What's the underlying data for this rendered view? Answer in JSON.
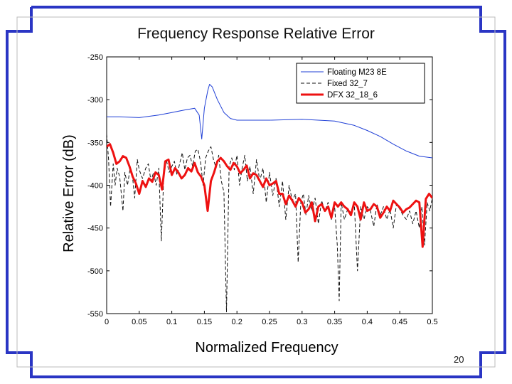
{
  "slide": {
    "page_number": "20",
    "frame_color": "#2a35c4"
  },
  "chart_data": {
    "type": "line",
    "title": "Frequency Response Relative Error",
    "xlabel": "Normalized Frequency",
    "ylabel": "Relative Error (dB)",
    "xlim": [
      0,
      0.5
    ],
    "ylim": [
      -550,
      -250
    ],
    "xticks": [
      0,
      0.05,
      0.1,
      0.15,
      0.2,
      0.25,
      0.3,
      0.35,
      0.4,
      0.45,
      0.5
    ],
    "xtick_labels": [
      "0",
      "0.05",
      "0.1",
      "0.15",
      "0.2",
      "0.25",
      "0.3",
      "0.35",
      "0.4",
      "0.45",
      "0.5"
    ],
    "yticks": [
      -250,
      -300,
      -350,
      -400,
      -450,
      -500,
      -550
    ],
    "ytick_labels": [
      "-250",
      "-300",
      "-350",
      "-400",
      "-450",
      "-500",
      "-550"
    ],
    "grid": false,
    "legend_position": "top-right",
    "series": [
      {
        "name": "Floating M23 8E",
        "color": "#1f3fd6",
        "style": "solid",
        "x": [
          0.0,
          0.02,
          0.05,
          0.08,
          0.1,
          0.12,
          0.135,
          0.142,
          0.146,
          0.15,
          0.155,
          0.158,
          0.162,
          0.17,
          0.18,
          0.19,
          0.2,
          0.25,
          0.3,
          0.35,
          0.38,
          0.4,
          0.42,
          0.44,
          0.46,
          0.48,
          0.5
        ],
        "y": [
          -320,
          -320,
          -321,
          -318,
          -315,
          -312,
          -310,
          -318,
          -346,
          -310,
          -290,
          -282,
          -285,
          -300,
          -315,
          -322,
          -324,
          -324,
          -323,
          -325,
          -330,
          -336,
          -343,
          -352,
          -360,
          -366,
          -368
        ]
      },
      {
        "name": "Fixed 32_7",
        "color": "#111111",
        "style": "dashed",
        "x": [
          0.0,
          0.003,
          0.006,
          0.01,
          0.013,
          0.016,
          0.02,
          0.025,
          0.028,
          0.032,
          0.036,
          0.04,
          0.043,
          0.047,
          0.05,
          0.055,
          0.06,
          0.064,
          0.068,
          0.072,
          0.076,
          0.08,
          0.084,
          0.088,
          0.092,
          0.096,
          0.1,
          0.104,
          0.108,
          0.112,
          0.116,
          0.12,
          0.124,
          0.128,
          0.132,
          0.136,
          0.14,
          0.144,
          0.148,
          0.152,
          0.156,
          0.16,
          0.164,
          0.168,
          0.172,
          0.176,
          0.18,
          0.184,
          0.188,
          0.192,
          0.196,
          0.2,
          0.204,
          0.208,
          0.212,
          0.216,
          0.22,
          0.225,
          0.23,
          0.235,
          0.24,
          0.245,
          0.25,
          0.255,
          0.26,
          0.265,
          0.27,
          0.275,
          0.28,
          0.285,
          0.29,
          0.294,
          0.298,
          0.302,
          0.306,
          0.31,
          0.315,
          0.32,
          0.325,
          0.33,
          0.335,
          0.34,
          0.345,
          0.35,
          0.354,
          0.357,
          0.36,
          0.365,
          0.37,
          0.375,
          0.38,
          0.385,
          0.39,
          0.395,
          0.4,
          0.405,
          0.41,
          0.415,
          0.42,
          0.425,
          0.43,
          0.435,
          0.44,
          0.445,
          0.45,
          0.455,
          0.46,
          0.465,
          0.47,
          0.475,
          0.48,
          0.484,
          0.488,
          0.492,
          0.496,
          0.5
        ],
        "y": [
          -340,
          -370,
          -425,
          -375,
          -400,
          -380,
          -390,
          -430,
          -385,
          -400,
          -380,
          -392,
          -415,
          -370,
          -382,
          -392,
          -380,
          -375,
          -395,
          -385,
          -400,
          -380,
          -465,
          -382,
          -372,
          -385,
          -378,
          -372,
          -388,
          -375,
          -362,
          -382,
          -368,
          -365,
          -378,
          -360,
          -358,
          -372,
          -400,
          -368,
          -360,
          -355,
          -370,
          -380,
          -365,
          -395,
          -408,
          -548,
          -378,
          -368,
          -382,
          -365,
          -400,
          -380,
          -365,
          -395,
          -378,
          -410,
          -370,
          -395,
          -380,
          -420,
          -385,
          -412,
          -392,
          -425,
          -395,
          -440,
          -400,
          -418,
          -410,
          -490,
          -420,
          -410,
          -435,
          -412,
          -430,
          -415,
          -445,
          -418,
          -430,
          -420,
          -440,
          -425,
          -470,
          -535,
          -420,
          -440,
          -428,
          -432,
          -420,
          -500,
          -425,
          -440,
          -425,
          -430,
          -448,
          -422,
          -435,
          -425,
          -440,
          -428,
          -450,
          -422,
          -428,
          -435,
          -440,
          -430,
          -445,
          -430,
          -450,
          -425,
          -470,
          -420,
          -430,
          -415
        ]
      },
      {
        "name": "DFX 32_18_6",
        "color": "#ee1111",
        "style": "solid-thick",
        "x": [
          0.0,
          0.005,
          0.01,
          0.015,
          0.02,
          0.025,
          0.03,
          0.035,
          0.04,
          0.045,
          0.05,
          0.055,
          0.06,
          0.065,
          0.07,
          0.075,
          0.08,
          0.085,
          0.09,
          0.095,
          0.1,
          0.105,
          0.11,
          0.115,
          0.12,
          0.125,
          0.13,
          0.135,
          0.14,
          0.145,
          0.15,
          0.155,
          0.16,
          0.165,
          0.17,
          0.175,
          0.18,
          0.185,
          0.19,
          0.195,
          0.2,
          0.205,
          0.21,
          0.215,
          0.22,
          0.225,
          0.23,
          0.235,
          0.24,
          0.245,
          0.25,
          0.255,
          0.26,
          0.265,
          0.27,
          0.275,
          0.28,
          0.285,
          0.29,
          0.295,
          0.3,
          0.305,
          0.31,
          0.315,
          0.32,
          0.325,
          0.33,
          0.335,
          0.34,
          0.345,
          0.35,
          0.355,
          0.36,
          0.365,
          0.37,
          0.375,
          0.38,
          0.385,
          0.39,
          0.395,
          0.4,
          0.405,
          0.41,
          0.415,
          0.42,
          0.425,
          0.43,
          0.435,
          0.44,
          0.445,
          0.45,
          0.455,
          0.46,
          0.465,
          0.47,
          0.475,
          0.48,
          0.485,
          0.49,
          0.495,
          0.5
        ],
        "y": [
          -355,
          -352,
          -362,
          -375,
          -372,
          -366,
          -368,
          -378,
          -390,
          -398,
          -410,
          -395,
          -402,
          -392,
          -396,
          -385,
          -388,
          -405,
          -372,
          -370,
          -388,
          -380,
          -385,
          -392,
          -388,
          -380,
          -384,
          -374,
          -385,
          -390,
          -400,
          -430,
          -395,
          -385,
          -372,
          -368,
          -372,
          -378,
          -382,
          -374,
          -378,
          -386,
          -382,
          -377,
          -392,
          -386,
          -388,
          -395,
          -402,
          -392,
          -400,
          -398,
          -395,
          -410,
          -410,
          -422,
          -412,
          -418,
          -425,
          -415,
          -420,
          -432,
          -428,
          -420,
          -442,
          -425,
          -422,
          -430,
          -425,
          -438,
          -420,
          -425,
          -420,
          -425,
          -428,
          -435,
          -420,
          -425,
          -440,
          -420,
          -430,
          -428,
          -422,
          -425,
          -438,
          -432,
          -425,
          -430,
          -418,
          -422,
          -426,
          -432,
          -428,
          -426,
          -422,
          -418,
          -420,
          -472,
          -416,
          -410,
          -415
        ]
      }
    ]
  }
}
